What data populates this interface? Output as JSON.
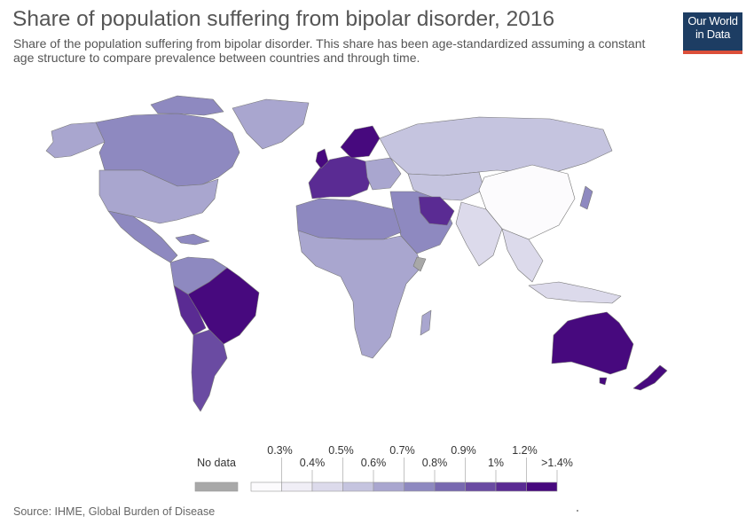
{
  "header": {
    "title": "Share of population suffering from bipolar disorder, 2016",
    "subtitle": "Share of the population suffering from bipolar disorder. This share has been age-standardized assuming a constant age structure to compare prevalence between countries and through time."
  },
  "logo": {
    "line1": "Our World",
    "line2": "in Data",
    "bg": "#1d3d63",
    "accent": "#dc4f3a"
  },
  "footer": {
    "source": "Source: IHME, Global Burden of Disease"
  },
  "chart_data": {
    "type": "choropleth",
    "variable": "Share of population with bipolar disorder (%)",
    "year": 2016,
    "no_data": {
      "label": "No data",
      "color": "#a8a8a8"
    },
    "bins": [
      {
        "upper": "0.3%",
        "color": "#fcfbfd"
      },
      {
        "upper": "0.4%",
        "color": "#f0eef6"
      },
      {
        "upper": "0.5%",
        "color": "#dcdaeb"
      },
      {
        "upper": "0.6%",
        "color": "#c5c4df"
      },
      {
        "upper": "0.7%",
        "color": "#a9a6cf"
      },
      {
        "upper": "0.8%",
        "color": "#8e89c0"
      },
      {
        "upper": "0.9%",
        "color": "#7869b0"
      },
      {
        "upper": "1%",
        "color": "#6a4ba2"
      },
      {
        "upper": "1.2%",
        "color": "#5a2b93"
      },
      {
        "upper": ">1.4%",
        "color": "#47097e"
      }
    ],
    "legend_labels_top": [
      "0.3%",
      "0.5%",
      "0.7%",
      "0.9%",
      "1.2%"
    ],
    "legend_labels_bottom": [
      "0.4%",
      "0.6%",
      "0.8%",
      "1%",
      ">1.4%"
    ]
  }
}
